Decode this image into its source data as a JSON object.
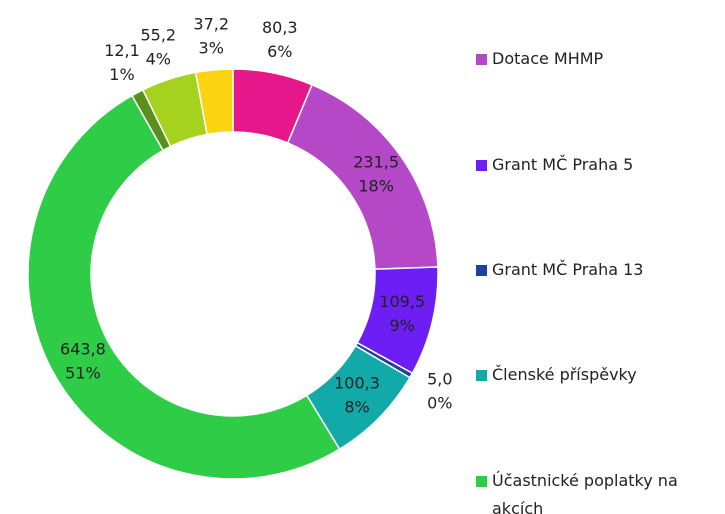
{
  "chart_data": {
    "type": "donut",
    "categories": [
      null,
      "Dotace MHMP",
      "Grant MČ Praha 5",
      "Grant MČ Praha 13",
      "Členské příspěvky",
      "Účastnické poplatky na akcích",
      null,
      null,
      null
    ],
    "values": [
      80.3,
      231.5,
      109.5,
      5.0,
      100.3,
      643.8,
      12.1,
      55.2,
      37.2
    ],
    "value_labels": [
      "80,3",
      "231,5",
      "109,5",
      "5,0",
      "100,3",
      "643,8",
      "12,1",
      "55,2",
      "37,2"
    ],
    "percents": [
      6,
      18,
      9,
      0,
      8,
      51,
      1,
      4,
      3
    ],
    "percent_labels": [
      "6%",
      "18%",
      "9%",
      "0%",
      "8%",
      "51%",
      "1%",
      "4%",
      "3%"
    ],
    "colors": [
      "#e6178a",
      "#b548c6",
      "#6c1ef5",
      "#1f3f9e",
      "#12aaa8",
      "#2ecc47",
      "#5a8f1e",
      "#a5d21e",
      "#fcd411"
    ],
    "legend": "right"
  }
}
